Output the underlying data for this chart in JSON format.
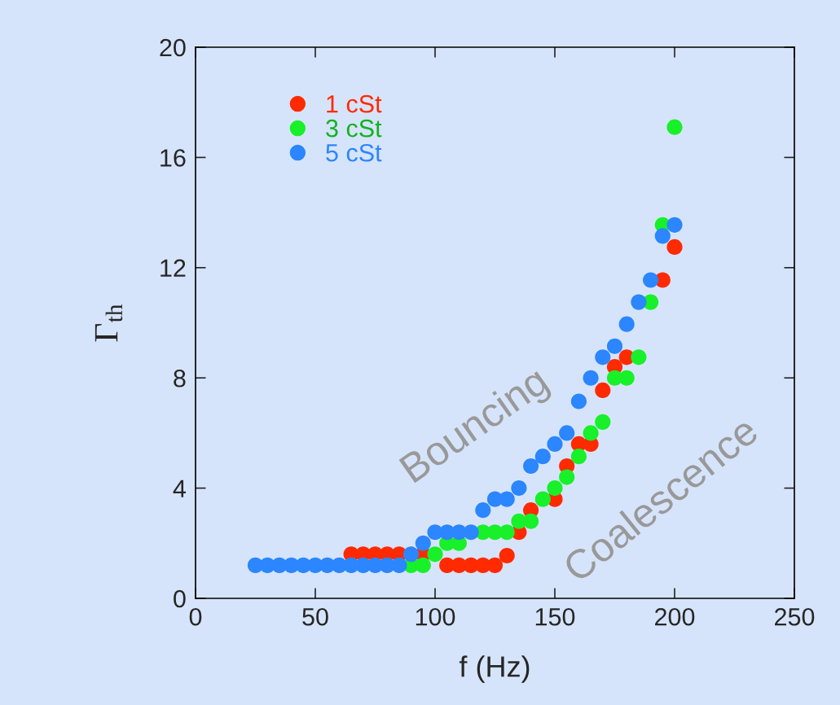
{
  "chart_data": {
    "type": "scatter",
    "xlabel": "f (Hz)",
    "ylabel": "Γ$_{th}$",
    "xlim": [
      0,
      250
    ],
    "xticks": [
      0,
      50,
      100,
      150,
      200,
      250
    ],
    "ylim": [
      0,
      20
    ],
    "yticks": [
      0,
      4,
      8,
      12,
      16,
      20
    ],
    "grid": false,
    "legend": "top left",
    "marker": "circle",
    "annotations": [
      "Bouncing",
      "Coalescence"
    ],
    "series": [
      {
        "name": "1 cSt",
        "color": "#ff2a00",
        "x": [
          65,
          70,
          75,
          80,
          85,
          90,
          95,
          105,
          110,
          115,
          120,
          125,
          130,
          135,
          140,
          150,
          155,
          160,
          165,
          170,
          175,
          180,
          195,
          200
        ],
        "values": [
          1.6,
          1.6,
          1.6,
          1.6,
          1.6,
          null,
          1.6,
          1.2,
          1.2,
          1.2,
          1.2,
          1.2,
          1.55,
          2.4,
          3.2,
          3.6,
          4.8,
          5.6,
          5.6,
          7.55,
          8.4,
          8.75,
          11.55,
          12.75
        ]
      },
      {
        "name": "3 cSt",
        "color": "#18f02a",
        "x": [
          90,
          95,
          100,
          105,
          110,
          120,
          125,
          130,
          135,
          140,
          145,
          150,
          155,
          160,
          165,
          170,
          175,
          180,
          185,
          190,
          195,
          200
        ],
        "values": [
          1.2,
          1.2,
          1.6,
          2.0,
          2.0,
          2.4,
          2.4,
          2.4,
          2.8,
          2.8,
          3.6,
          4.0,
          4.4,
          5.15,
          6.0,
          6.4,
          8.0,
          8.0,
          8.75,
          10.75,
          13.55,
          17.1
        ]
      },
      {
        "name": "5 cSt",
        "color": "#2b86ff",
        "x": [
          25,
          30,
          35,
          40,
          45,
          50,
          55,
          60,
          65,
          70,
          75,
          80,
          85,
          90,
          95,
          100,
          105,
          110,
          115,
          120,
          125,
          130,
          135,
          140,
          145,
          150,
          155,
          160,
          165,
          170,
          175,
          180,
          185,
          190,
          195,
          200
        ],
        "values": [
          1.2,
          1.2,
          1.2,
          1.2,
          1.2,
          1.2,
          1.2,
          1.2,
          1.2,
          1.2,
          1.2,
          1.2,
          1.2,
          1.6,
          2.0,
          2.4,
          2.4,
          2.4,
          2.4,
          3.2,
          3.6,
          3.6,
          4.0,
          4.8,
          5.15,
          5.6,
          6.0,
          7.15,
          8.0,
          8.75,
          9.15,
          9.95,
          10.75,
          11.55,
          13.15,
          13.55
        ]
      }
    ]
  }
}
